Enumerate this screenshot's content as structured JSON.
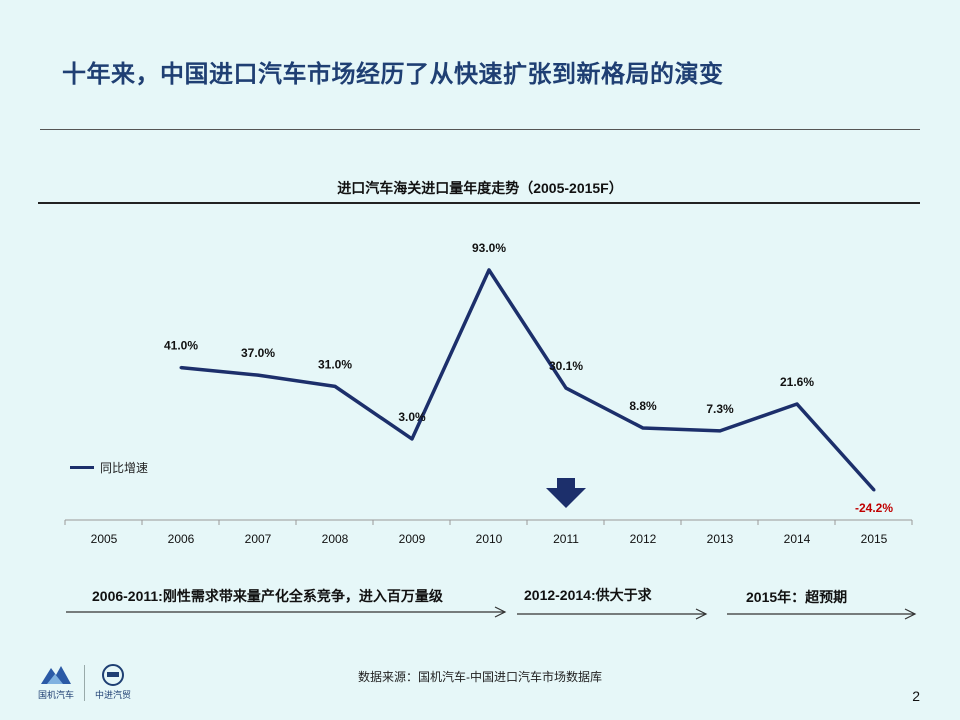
{
  "slide": {
    "title": "十年来，中国进口汽车市场经历了从快速扩张到新格局的演变",
    "page_number": "2",
    "source": "数据来源：国机汽车-中国进口汽车市场数据库",
    "logo_left": "国机汽车",
    "logo_right": "中进汽贸"
  },
  "phases": [
    {
      "label": "2006-2011:刚性需求带来量产化全系竞争，进入百万量级"
    },
    {
      "label": "2012-2014:供大于求"
    },
    {
      "label": "2015年：超预期"
    }
  ],
  "colors": {
    "line": "#1c2f6b",
    "negative": "#c00000",
    "arrow": "#1c2f6b",
    "title": "#1f3f73"
  },
  "chart_data": {
    "type": "line",
    "title": "进口汽车海关进口量年度走势（2005-2015F）",
    "categories": [
      "2005",
      "2006",
      "2007",
      "2008",
      "2009",
      "2010",
      "2011",
      "2012",
      "2013",
      "2014",
      "2015"
    ],
    "series": [
      {
        "name": "同比增速",
        "values": [
          null,
          41.0,
          37.0,
          31.0,
          3.0,
          93.0,
          30.1,
          8.8,
          7.3,
          21.6,
          -24.2
        ],
        "labels": [
          "",
          "41.0%",
          "37.0%",
          "31.0%",
          "3.0%",
          "93.0%",
          "30.1%",
          "8.8%",
          "7.3%",
          "21.6%",
          "-24.2%"
        ]
      }
    ],
    "ylim": [
      -30,
      100
    ],
    "grid": false,
    "legend": "left",
    "highlight_category": "2011"
  }
}
